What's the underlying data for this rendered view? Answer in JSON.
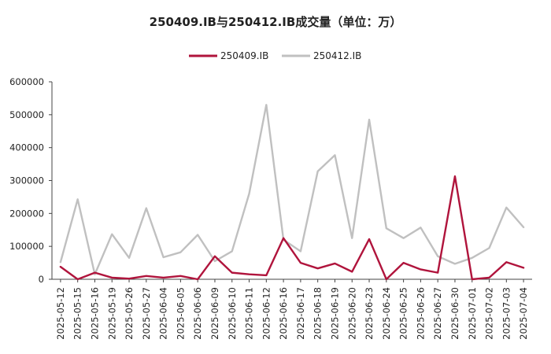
{
  "chart_data": {
    "type": "line",
    "title": "250409.IB与250412.IB成交量（单位：万）",
    "xlabel": "",
    "ylabel": "",
    "ylim": [
      0,
      600000
    ],
    "yticks": [
      "0",
      "100000",
      "200000",
      "300000",
      "400000",
      "500000",
      "600000"
    ],
    "grid": false,
    "legend_position": "top",
    "categories": [
      "2025-05-12",
      "2025-05-15",
      "2025-05-16",
      "2025-05-19",
      "2025-05-26",
      "2025-05-27",
      "2025-06-04",
      "2025-06-05",
      "2025-06-06",
      "2025-06-09",
      "2025-06-10",
      "2025-06-11",
      "2025-06-12",
      "2025-06-16",
      "2025-06-17",
      "2025-06-18",
      "2025-06-19",
      "2025-06-20",
      "2025-06-23",
      "2025-06-24",
      "2025-06-25",
      "2025-06-26",
      "2025-06-27",
      "2025-06-30",
      "2025-07-01",
      "2025-07-02",
      "2025-07-03",
      "2025-07-04"
    ],
    "series": [
      {
        "name": "250409.IB",
        "color": "#b0143c",
        "values": [
          38000,
          0,
          20000,
          5000,
          2000,
          10000,
          5000,
          10000,
          0,
          70000,
          20000,
          15000,
          12000,
          125000,
          50000,
          33000,
          48000,
          23000,
          122000,
          0,
          50000,
          30000,
          20000,
          313000,
          0,
          5000,
          52000,
          35000
        ]
      },
      {
        "name": "250412.IB",
        "color": "#c0c0c0",
        "values": [
          52000,
          243000,
          15000,
          137000,
          65000,
          216000,
          67000,
          82000,
          135000,
          55000,
          85000,
          260000,
          530000,
          120000,
          85000,
          328000,
          377000,
          125000,
          485000,
          155000,
          125000,
          157000,
          70000,
          47000,
          65000,
          95000,
          218000,
          158000
        ]
      }
    ]
  }
}
